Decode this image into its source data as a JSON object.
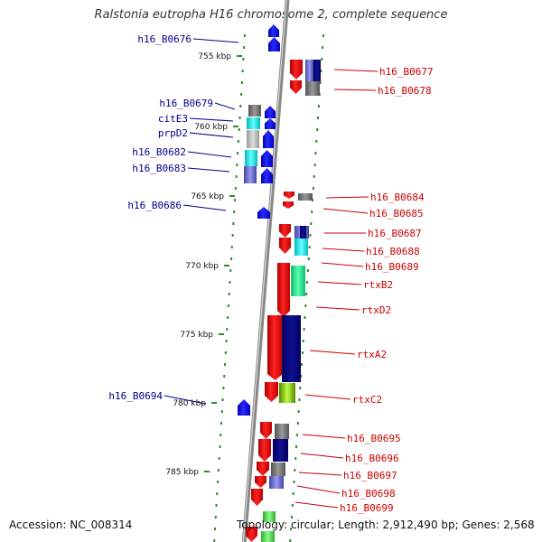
{
  "title": "Ralstonia eutropha H16 chromosome 2, complete sequence",
  "footer": {
    "accession": "Accession: NC_008314",
    "topology": "Topology: circular; Length: 2,912,490 bp; Genes: 2,568"
  },
  "colors": {
    "forward_strand": "#0000ee",
    "reverse_strand": "#ee0000",
    "backbone": "#888888",
    "tick_dots": "#2e8b2e",
    "left_label_text": "#00008b",
    "right_label_text": "#cc0000"
  },
  "scale_labels": [
    "755 kbp",
    "760 kbp",
    "765 kbp",
    "770 kbp",
    "775 kbp",
    "780 kbp",
    "785 kbp"
  ],
  "left_genes": [
    {
      "label": "h16_B0676",
      "strand": "forward"
    },
    {
      "label": "h16_B0679",
      "strand": "forward"
    },
    {
      "label": "citE3",
      "strand": "forward"
    },
    {
      "label": "prpD2",
      "strand": "forward"
    },
    {
      "label": "h16_B0682",
      "strand": "forward"
    },
    {
      "label": "h16_B0683",
      "strand": "forward"
    },
    {
      "label": "h16_B0686",
      "strand": "forward"
    },
    {
      "label": "h16_B0694",
      "strand": "forward"
    }
  ],
  "right_genes": [
    {
      "label": "h16_B0677",
      "strand": "reverse"
    },
    {
      "label": "h16_B0678",
      "strand": "reverse"
    },
    {
      "label": "h16_B0684",
      "strand": "reverse"
    },
    {
      "label": "h16_B0685",
      "strand": "reverse"
    },
    {
      "label": "h16_B0687",
      "strand": "reverse"
    },
    {
      "label": "h16_B0688",
      "strand": "reverse"
    },
    {
      "label": "h16_B0689",
      "strand": "reverse"
    },
    {
      "label": "rtxB2",
      "strand": "reverse"
    },
    {
      "label": "rtxD2",
      "strand": "reverse"
    },
    {
      "label": "rtxA2",
      "strand": "reverse"
    },
    {
      "label": "rtxC2",
      "strand": "reverse"
    },
    {
      "label": "h16_B0695",
      "strand": "reverse"
    },
    {
      "label": "h16_B0696",
      "strand": "reverse"
    },
    {
      "label": "h16_B0697",
      "strand": "reverse"
    },
    {
      "label": "h16_B0698",
      "strand": "reverse"
    },
    {
      "label": "h16_B0699",
      "strand": "reverse"
    }
  ]
}
